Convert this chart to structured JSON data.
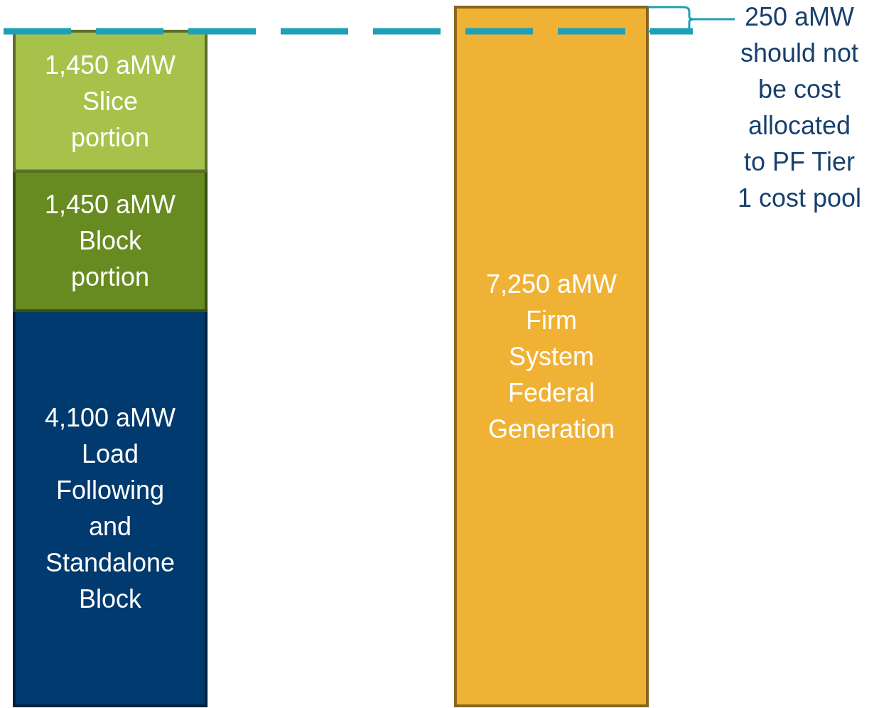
{
  "chart_data": {
    "type": "bar",
    "stacked": true,
    "categories": [
      null,
      null
    ],
    "series": [
      {
        "color": "#003a6e",
        "values": [
          4100,
          null
        ],
        "value_labels": [
          "4,100 aMW Load Following and Standalone Block",
          null
        ]
      },
      {
        "color": "#678b21",
        "values": [
          1450,
          null
        ],
        "value_labels": [
          "1,450 aMW Block portion",
          null
        ]
      },
      {
        "color": "#a6c24a",
        "values": [
          1450,
          null
        ],
        "value_labels": [
          "1,450 aMW Slice portion",
          null
        ]
      },
      {
        "color": "#f0b234",
        "values": [
          null,
          7250
        ],
        "value_labels": [
          null,
          "7,250 aMW Firm System Federal Generation"
        ]
      }
    ],
    "ref_lines": [
      {
        "axis": "y",
        "value": 7000,
        "color": "#1ea0b7",
        "line_style": "dashed"
      }
    ],
    "annotations": [
      "250 aMW should not be cost allocated to PF Tier 1 cost pool"
    ]
  }
}
